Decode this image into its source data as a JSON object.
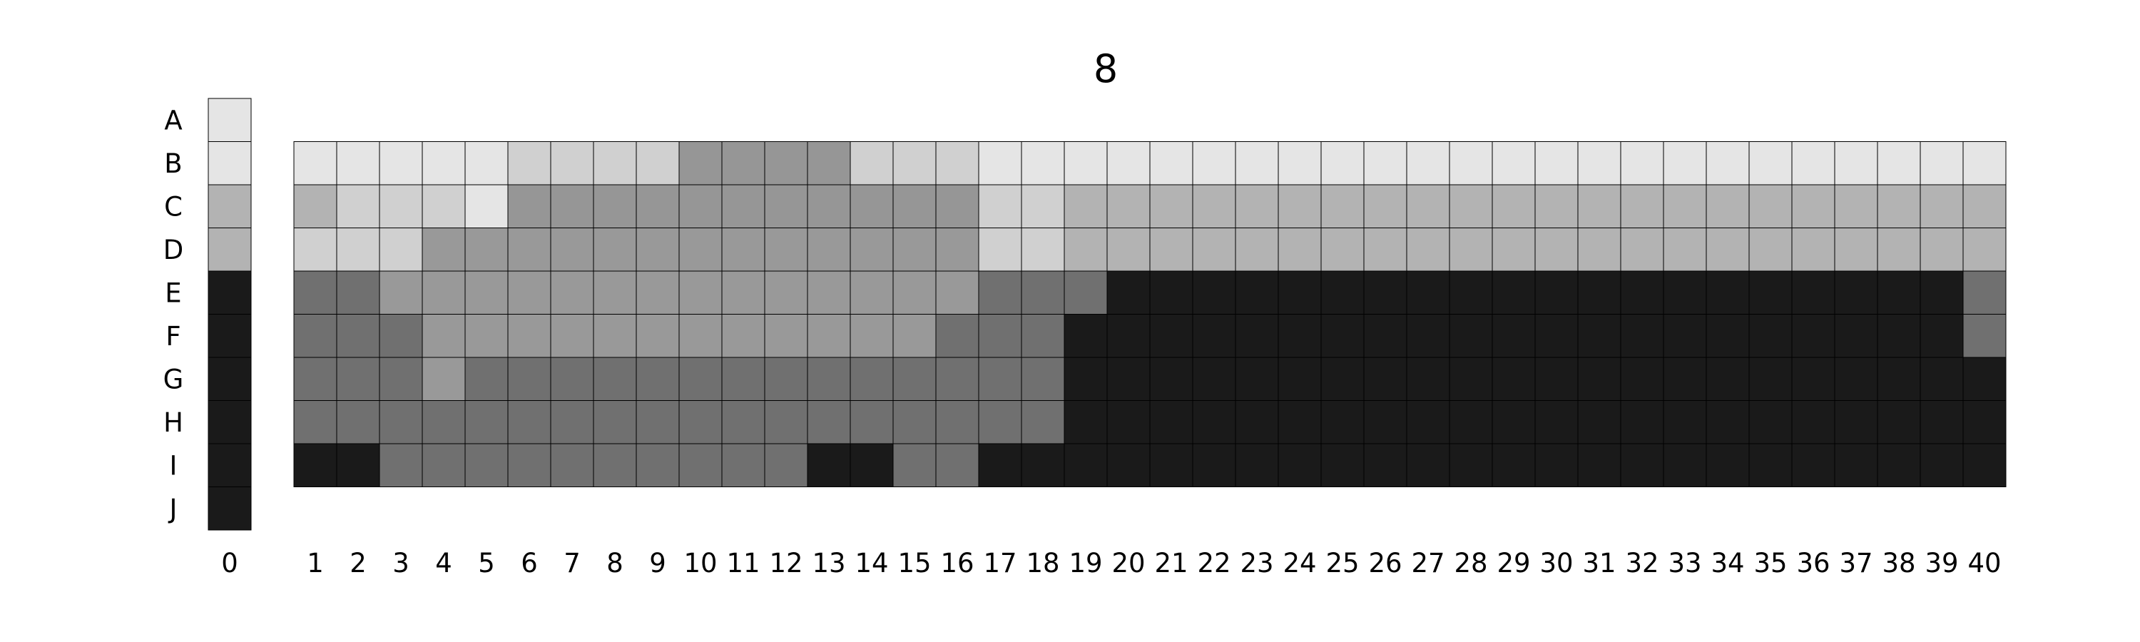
{
  "chart_data": {
    "type": "heatmap",
    "title": "8",
    "rows": [
      "A",
      "B",
      "C",
      "D",
      "E",
      "F",
      "G",
      "H",
      "I",
      "J"
    ],
    "key_column": {
      "label": "0",
      "values": [
        1,
        1,
        4,
        4,
        9,
        9,
        9,
        9,
        9,
        9
      ]
    },
    "columns": [
      "1",
      "2",
      "3",
      "4",
      "5",
      "6",
      "7",
      "8",
      "9",
      "10",
      "11",
      "12",
      "13",
      "14",
      "15",
      "16",
      "17",
      "18",
      "19",
      "20",
      "21",
      "22",
      "23",
      "24",
      "25",
      "26",
      "27",
      "28",
      "29",
      "30",
      "31",
      "32",
      "33",
      "34",
      "35",
      "36",
      "37",
      "38",
      "39",
      "40"
    ],
    "grid_rows": [
      "B",
      "C",
      "D",
      "E",
      "F",
      "G",
      "H",
      "I"
    ],
    "values": [
      [
        1,
        1,
        1,
        1,
        1,
        2,
        2,
        2,
        2,
        6,
        6,
        6,
        6,
        2,
        2,
        2,
        1,
        1,
        1,
        1,
        1,
        1,
        1,
        1,
        1,
        1,
        1,
        1,
        1,
        1,
        1,
        1,
        1,
        1,
        1,
        1,
        1,
        1,
        1,
        1
      ],
      [
        4,
        2,
        2,
        2,
        1,
        6,
        6,
        6,
        6,
        6,
        6,
        6,
        6,
        6,
        6,
        6,
        2,
        2,
        4,
        4,
        4,
        4,
        4,
        4,
        4,
        4,
        4,
        4,
        4,
        4,
        4,
        4,
        4,
        4,
        4,
        4,
        4,
        4,
        4,
        4
      ],
      [
        2,
        2,
        2,
        5,
        5,
        5,
        5,
        5,
        5,
        5,
        5,
        5,
        5,
        5,
        5,
        5,
        2,
        2,
        4,
        4,
        4,
        4,
        4,
        4,
        4,
        4,
        4,
        4,
        4,
        4,
        4,
        4,
        4,
        4,
        4,
        4,
        4,
        4,
        4,
        4
      ],
      [
        8,
        8,
        5,
        5,
        5,
        5,
        5,
        5,
        5,
        5,
        5,
        5,
        5,
        5,
        5,
        5,
        8,
        8,
        8,
        9,
        9,
        9,
        9,
        9,
        9,
        9,
        9,
        9,
        9,
        9,
        9,
        9,
        9,
        9,
        9,
        9,
        9,
        9,
        9,
        8
      ],
      [
        8,
        8,
        8,
        5,
        5,
        5,
        5,
        5,
        5,
        5,
        5,
        5,
        5,
        5,
        5,
        8,
        8,
        8,
        9,
        9,
        9,
        9,
        9,
        9,
        9,
        9,
        9,
        9,
        9,
        9,
        9,
        9,
        9,
        9,
        9,
        9,
        9,
        9,
        9,
        8
      ],
      [
        8,
        8,
        8,
        5,
        8,
        8,
        8,
        8,
        8,
        8,
        8,
        8,
        8,
        8,
        8,
        8,
        8,
        8,
        9,
        9,
        9,
        9,
        9,
        9,
        9,
        9,
        9,
        9,
        9,
        9,
        9,
        9,
        9,
        9,
        9,
        9,
        9,
        9,
        9,
        9
      ],
      [
        8,
        8,
        8,
        8,
        8,
        8,
        8,
        8,
        8,
        8,
        8,
        8,
        8,
        8,
        8,
        8,
        8,
        8,
        9,
        9,
        9,
        9,
        9,
        9,
        9,
        9,
        9,
        9,
        9,
        9,
        9,
        9,
        9,
        9,
        9,
        9,
        9,
        9,
        9,
        9
      ],
      [
        9,
        9,
        8,
        8,
        8,
        8,
        8,
        8,
        8,
        8,
        8,
        8,
        9,
        9,
        8,
        8,
        9,
        9,
        9,
        9,
        9,
        9,
        9,
        9,
        9,
        9,
        9,
        9,
        9,
        9,
        9,
        9,
        9,
        9,
        9,
        9,
        9,
        9,
        9,
        9
      ]
    ],
    "color_levels": {
      "1": "#e5e5e5",
      "2": "#d0d0d0",
      "4": "#b3b3b3",
      "5": "#999999",
      "6": "#969696",
      "8": "#707070",
      "9": "#1a1a1a"
    },
    "grid": true,
    "legend": "none"
  }
}
